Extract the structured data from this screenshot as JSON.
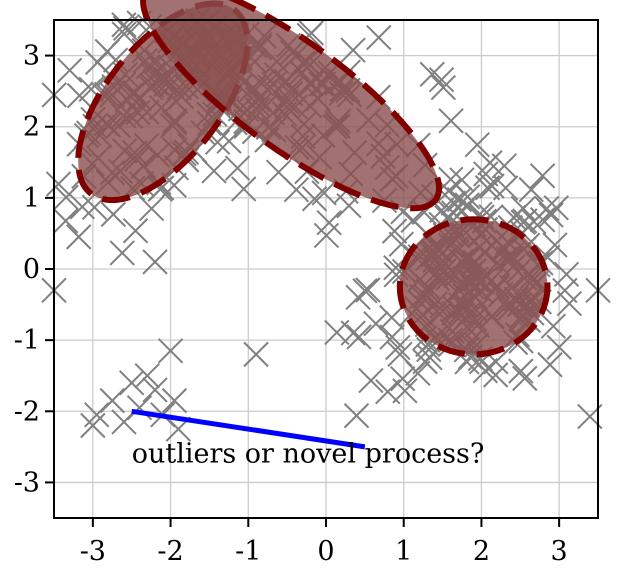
{
  "chart_data": {
    "type": "scatter",
    "title": "",
    "xlabel": "",
    "ylabel": "",
    "xlim": [
      -3.5,
      3.5
    ],
    "ylim": [
      -3.5,
      3.5
    ],
    "xticks": [
      -3,
      -2,
      -1,
      0,
      1,
      2,
      3
    ],
    "yticks": [
      -3,
      -2,
      -1,
      0,
      1,
      2,
      3
    ],
    "xtick_labels": [
      "-3",
      "-2",
      "-1",
      "0",
      "1",
      "2",
      "3"
    ],
    "ytick_labels": [
      "-3",
      "-2",
      "-1",
      "0",
      "1",
      "2",
      "3"
    ],
    "grid": true,
    "marker": "x",
    "marker_color": "#808080",
    "ellipse_fill": "#8b4f4f",
    "ellipse_edge": "#800000",
    "line_color": "#0000ff",
    "components": [
      {
        "center": [
          -2.1,
          2.35
        ],
        "width": 1.5,
        "height": 0.8,
        "angle": 52,
        "n": 150
      },
      {
        "center": [
          -0.45,
          2.45
        ],
        "width": 2.3,
        "height": 0.75,
        "angle": -36,
        "n": 160
      },
      {
        "center": [
          1.9,
          -0.25
        ],
        "width": 0.95,
        "height": 0.95,
        "angle": 0,
        "n": 200
      }
    ],
    "outliers": [
      [
        -2.2,
        0.1
      ],
      [
        -0.9,
        -1.2
      ],
      [
        -2.0,
        -1.15
      ],
      [
        -2.3,
        -1.5
      ],
      [
        -2.5,
        -1.6
      ],
      [
        -2.2,
        -1.7
      ],
      [
        -1.95,
        -1.85
      ],
      [
        -2.4,
        -1.95
      ],
      [
        -2.1,
        -2.05
      ],
      [
        -2.75,
        -1.85
      ],
      [
        -2.95,
        -2.05
      ],
      [
        -3.0,
        -2.2
      ],
      [
        -1.9,
        -2.25
      ],
      [
        -3.5,
        -0.3
      ],
      [
        0.35,
        -0.9
      ],
      [
        3.0,
        -1.1
      ],
      [
        3.5,
        -0.3
      ],
      [
        -2.6,
        -2.15
      ]
    ],
    "line": {
      "x": [
        -2.5,
        0.5
      ],
      "y": [
        -2.0,
        -2.5
      ]
    },
    "annotation": {
      "text": "outliers or novel process?",
      "x": -2.5,
      "y": -2.72
    }
  }
}
